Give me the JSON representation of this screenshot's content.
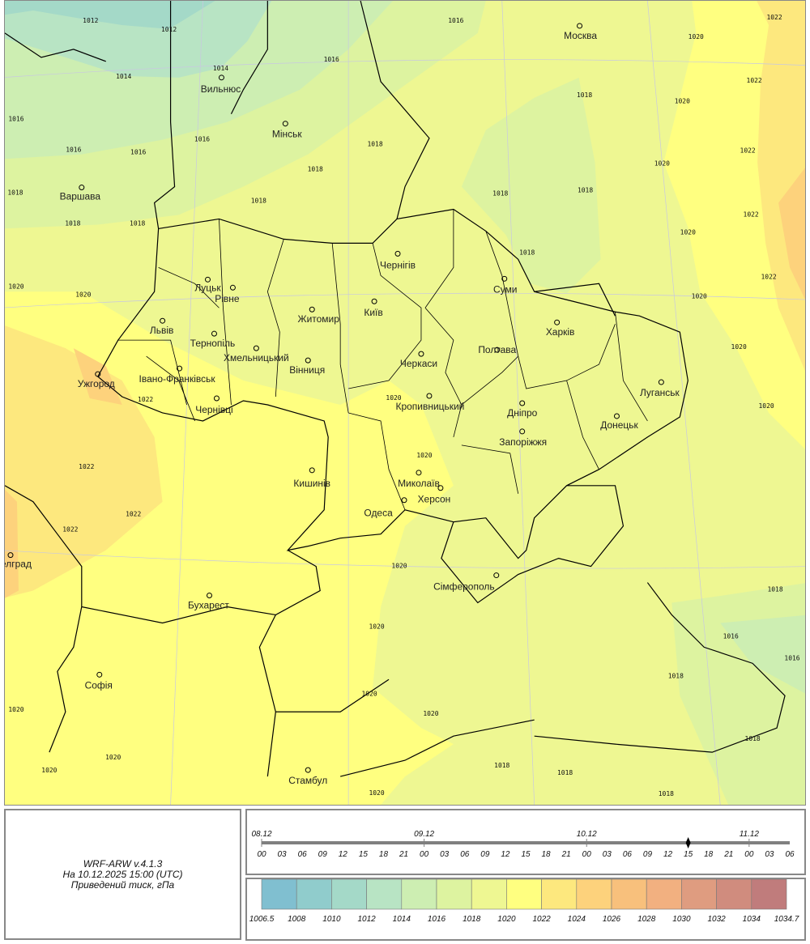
{
  "info": {
    "model": "WRF-ARW v.4.1.3",
    "valid_time": "На 10.12.2025 15:00 (UTC)",
    "parameter": "Приведений тиск, гПа"
  },
  "timeline": {
    "dates": [
      "08.12",
      "09.12",
      "10.12",
      "11.12"
    ],
    "hours": [
      "00",
      "03",
      "06",
      "09",
      "12",
      "15",
      "18",
      "21",
      "00",
      "03",
      "06",
      "09",
      "12",
      "15",
      "18",
      "21",
      "00",
      "03",
      "06",
      "09",
      "12",
      "15",
      "18",
      "21",
      "00",
      "03",
      "06"
    ],
    "current_index": 21
  },
  "legend": {
    "ticks": [
      "1006.5",
      "1008",
      "1010",
      "1012",
      "1014",
      "1016",
      "1018",
      "1020",
      "1022",
      "1024",
      "1026",
      "1028",
      "1030",
      "1032",
      "1034",
      "1034.7"
    ],
    "colors": [
      "#80bfd0",
      "#90cccc",
      "#a4d9c8",
      "#b8e4c4",
      "#cdeeb2",
      "#ddf3a0",
      "#eef792",
      "#ffff80",
      "#fde87e",
      "#fdd27c",
      "#f8c07c",
      "#f2b080",
      "#df9c80",
      "#d08c7e",
      "#c07c7c"
    ]
  },
  "cities": [
    "Москва",
    "Вильнюс",
    "Мінськ",
    "Варшава",
    "Луцьк",
    "Рівне",
    "Львів",
    "Тернопіль",
    "Хмельницький",
    "Житомир",
    "Київ",
    "Чернігів",
    "Суми",
    "Харків",
    "Полтава",
    "Черкаси",
    "Вінниця",
    "Івано-Франківськ",
    "Ужгород",
    "Чернівці",
    "Кропивницький",
    "Луганськ",
    "Дніпро",
    "Донецьк",
    "Запоріжжя",
    "Кишинів",
    "Миколаїв",
    "Херсон",
    "Одеса",
    "Сімферополь",
    "Бухарест",
    "Софія",
    "Стамбул",
    "Белград"
  ],
  "isobar_labels": [
    "1012",
    "1012",
    "1014",
    "1014",
    "1016",
    "1016",
    "1016",
    "1016",
    "1016",
    "1016",
    "1018",
    "1018",
    "1018",
    "1018",
    "1018",
    "1018",
    "1018",
    "1018",
    "1018",
    "1018",
    "1020",
    "1020",
    "1020",
    "1020",
    "1020",
    "1020",
    "1020",
    "1022",
    "1022",
    "1022",
    "1022",
    "1022",
    "1020",
    "1020",
    "1022",
    "1022",
    "1022",
    "1022",
    "1020",
    "1020",
    "1020",
    "1020",
    "1020",
    "1020",
    "1020",
    "1020",
    "1020",
    "1020",
    "1018",
    "1016",
    "1016",
    "1018",
    "1018",
    "1018",
    "1018",
    "1018"
  ]
}
